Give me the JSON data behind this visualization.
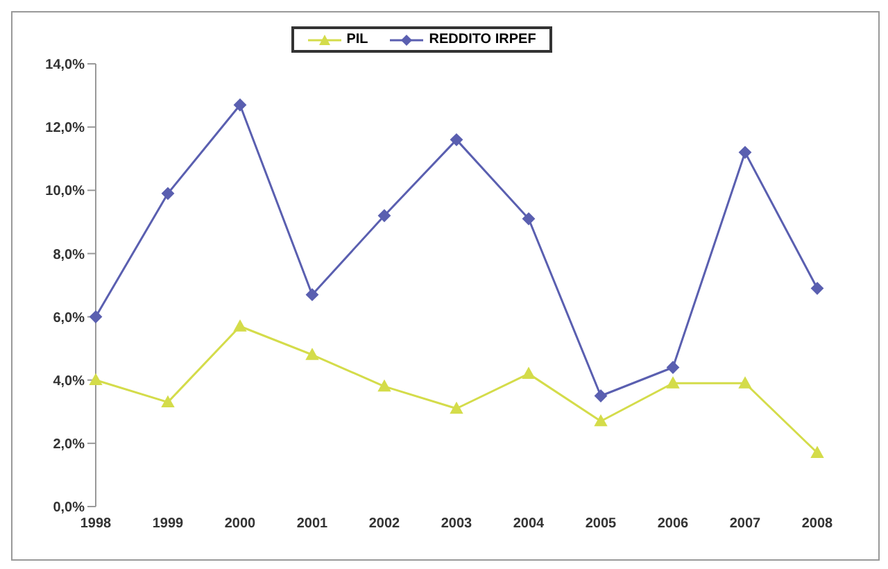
{
  "chart_data": {
    "type": "line",
    "categories": [
      "1998",
      "1999",
      "2000",
      "2001",
      "2002",
      "2003",
      "2004",
      "2005",
      "2006",
      "2007",
      "2008"
    ],
    "series": [
      {
        "name": "REDDITO IRPEF",
        "color": "#5a5fb0",
        "marker": "diamond",
        "values": [
          6.0,
          9.9,
          12.7,
          6.7,
          9.2,
          11.6,
          9.1,
          3.5,
          4.4,
          11.2,
          6.9
        ]
      },
      {
        "name": "PIL",
        "color": "#d4dc4a",
        "marker": "triangle",
        "values": [
          4.0,
          3.3,
          5.7,
          4.8,
          3.8,
          3.1,
          4.2,
          2.7,
          3.9,
          3.9,
          1.7
        ]
      }
    ],
    "ylim": [
      0,
      14
    ],
    "yticks": [
      {
        "value": 0,
        "label": "0,0%"
      },
      {
        "value": 2,
        "label": "2,0%"
      },
      {
        "value": 4,
        "label": "4,0%"
      },
      {
        "value": 6,
        "label": "6,0%"
      },
      {
        "value": 8,
        "label": "8,0%"
      },
      {
        "value": 10,
        "label": "10,0%"
      },
      {
        "value": 12,
        "label": "12,0%"
      },
      {
        "value": 14,
        "label": "14,0%"
      }
    ],
    "grid": false,
    "legend": "top",
    "line_style": "solid"
  }
}
